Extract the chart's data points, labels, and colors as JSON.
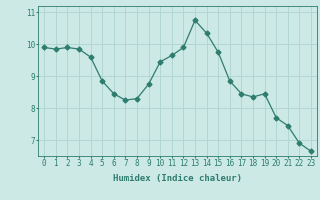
{
  "x": [
    0,
    1,
    2,
    3,
    4,
    5,
    6,
    7,
    8,
    9,
    10,
    11,
    12,
    13,
    14,
    15,
    16,
    17,
    18,
    19,
    20,
    21,
    22,
    23
  ],
  "y": [
    9.9,
    9.85,
    9.9,
    9.85,
    9.6,
    8.85,
    8.45,
    8.25,
    8.3,
    8.75,
    9.45,
    9.65,
    9.9,
    10.75,
    10.35,
    9.75,
    8.85,
    8.45,
    8.35,
    8.45,
    7.7,
    7.45,
    6.9,
    6.65
  ],
  "line_color": "#2e7d6e",
  "marker": "D",
  "marker_size": 2.5,
  "bg_color": "#cce9e6",
  "grid_color": "#aed4d0",
  "axis_color": "#2e7d6e",
  "xlabel": "Humidex (Indice chaleur)",
  "xlim": [
    -0.5,
    23.5
  ],
  "ylim": [
    6.5,
    11.2
  ],
  "yticks": [
    7,
    8,
    9,
    10,
    11
  ],
  "xticks": [
    0,
    1,
    2,
    3,
    4,
    5,
    6,
    7,
    8,
    9,
    10,
    11,
    12,
    13,
    14,
    15,
    16,
    17,
    18,
    19,
    20,
    21,
    22,
    23
  ],
  "label_fontsize": 6.5,
  "tick_fontsize": 5.5
}
